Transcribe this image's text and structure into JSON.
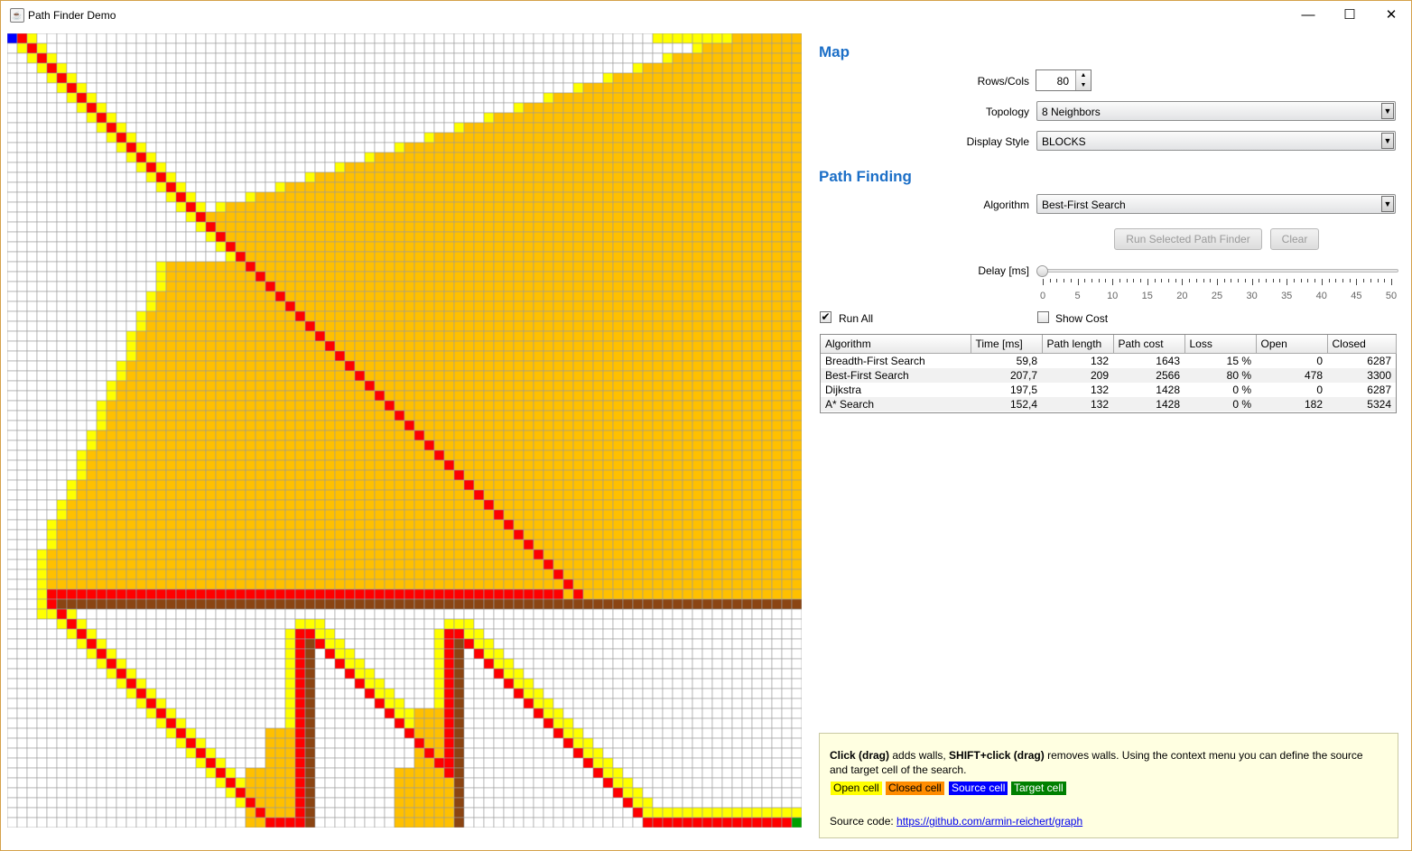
{
  "window": {
    "title": "Path Finder Demo",
    "app_icon": "java-cup-icon",
    "minimize_glyph": "—",
    "maximize_glyph": "☐",
    "close_glyph": "✕"
  },
  "grid": {
    "rows": 80,
    "cols": 80,
    "colors": {
      "empty": "#ffffff",
      "grid_line": "#9a9a9a",
      "open": "#ffff00",
      "closed": "#ffc000",
      "path": "#ff0000",
      "wall": "#8b4513",
      "source": "#0000ff",
      "target": "#00a000"
    }
  },
  "map": {
    "heading": "Map",
    "rows_cols_label": "Rows/Cols",
    "rows_cols_value": "80",
    "topology_label": "Topology",
    "topology_value": "8 Neighbors",
    "display_style_label": "Display Style",
    "display_style_value": "BLOCKS"
  },
  "pathfinding": {
    "heading": "Path Finding",
    "algorithm_label": "Algorithm",
    "algorithm_value": "Best-First Search",
    "run_button": "Run Selected Path Finder",
    "clear_button": "Clear",
    "delay_label": "Delay [ms]",
    "delay_value": 0,
    "delay_ticks": [
      "0",
      "5",
      "10",
      "15",
      "20",
      "25",
      "30",
      "35",
      "40",
      "45",
      "50"
    ],
    "run_all_label": "Run All",
    "run_all_checked": true,
    "show_cost_label": "Show Cost",
    "show_cost_checked": false
  },
  "results": {
    "columns": [
      "Algorithm",
      "Time [ms]",
      "Path length",
      "Path cost",
      "Loss",
      "Open",
      "Closed"
    ],
    "rows": [
      [
        "Breadth-First Search",
        "59,8",
        "132",
        "1643",
        "15 %",
        "0",
        "6287"
      ],
      [
        "Best-First Search",
        "207,7",
        "209",
        "2566",
        "80 %",
        "478",
        "3300"
      ],
      [
        "Dijkstra",
        "197,5",
        "132",
        "1428",
        "0 %",
        "0",
        "6287"
      ],
      [
        "A* Search",
        "152,4",
        "132",
        "1428",
        "0 %",
        "182",
        "5324"
      ]
    ]
  },
  "info": {
    "click_bold": "Click (drag)",
    "click_rest": " adds walls, ",
    "shift_bold": "SHIFT+click (drag)",
    "shift_rest": " removes walls. Using the context menu you can define the source",
    "line2": "and target cell of the search.",
    "legend": {
      "open": "Open cell",
      "closed": "Closed cell",
      "source": "Source cell",
      "target": "Target cell"
    },
    "legend_colors": {
      "open_bg": "#ffff00",
      "closed_bg": "#ff8c00",
      "source_bg": "#0000ff",
      "target_bg": "#008000"
    },
    "source_label": "Source code: ",
    "source_link": "https://github.com/armin-reichert/graph"
  }
}
